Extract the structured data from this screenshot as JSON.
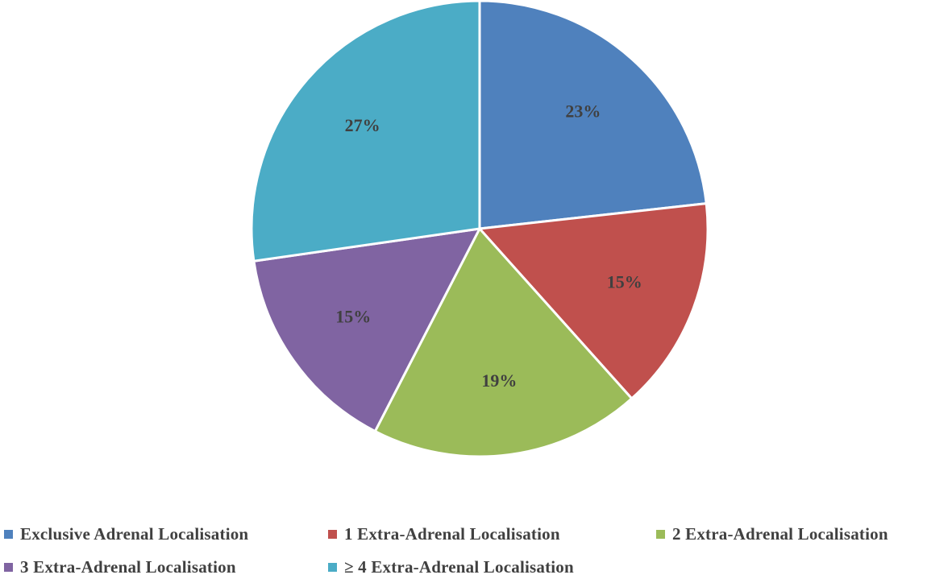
{
  "chart_data": {
    "type": "pie",
    "title": "",
    "categories": [
      "Exclusive Adrenal Localisation",
      "1 Extra-Adrenal Localisation",
      "2 Extra-Adrenal Localisation",
      "3 Extra-Adrenal Localisation",
      "≥ 4 Extra-Adrenal Localisation"
    ],
    "values": [
      23,
      15,
      19,
      15,
      27
    ],
    "data_labels": [
      "23%",
      "15%",
      "19%",
      "15%",
      "27%"
    ],
    "colors": [
      "#4F81BD",
      "#C0504D",
      "#9BBB59",
      "#8064A2",
      "#4BACC6"
    ],
    "start_angle": "12 o'clock",
    "direction": "clockwise",
    "legend_position": "bottom"
  },
  "legend": {
    "items": [
      {
        "label": "Exclusive Adrenal Localisation",
        "color": "#4F81BD"
      },
      {
        "label": "1 Extra-Adrenal Localisation",
        "color": "#C0504D"
      },
      {
        "label": "2 Extra-Adrenal Localisation",
        "color": "#9BBB59"
      },
      {
        "label": "3 Extra-Adrenal Localisation",
        "color": "#8064A2"
      },
      {
        "label": "≥ 4 Extra-Adrenal Localisation",
        "color": "#4BACC6"
      }
    ]
  }
}
